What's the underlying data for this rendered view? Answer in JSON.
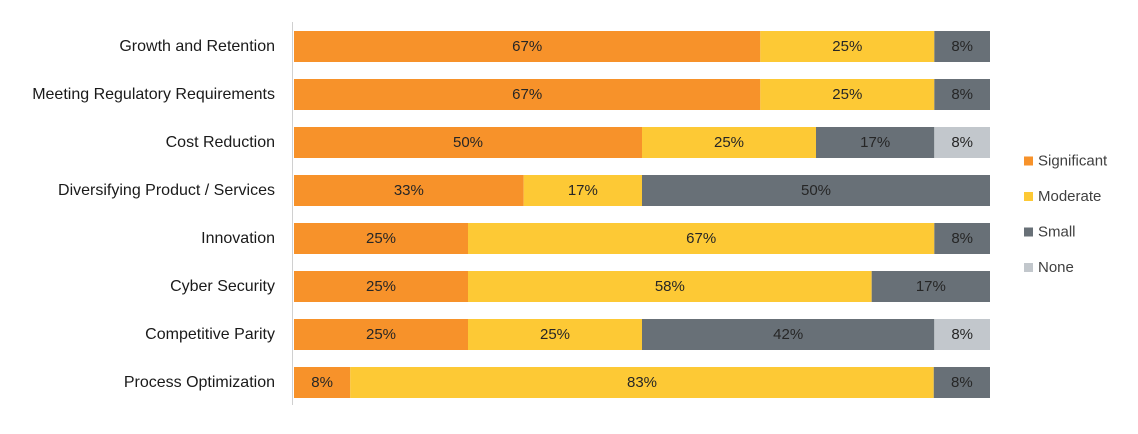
{
  "chart_data": {
    "type": "bar",
    "orientation": "horizontal",
    "stacked": true,
    "percent_stacked": true,
    "title": "",
    "xlabel": "",
    "ylabel": "",
    "xlim": [
      0,
      100
    ],
    "grid": false,
    "legend_position": "right",
    "categories": [
      "Growth and Retention",
      "Meeting Regulatory Requirements",
      "Cost Reduction",
      "Diversifying Product / Services",
      "Innovation",
      "Cyber Security",
      "Competitive Parity",
      "Process Optimization"
    ],
    "series": [
      {
        "name": "Significant",
        "color": "#f7922a",
        "label_color": "#262626",
        "values": [
          67,
          67,
          50,
          33,
          25,
          25,
          25,
          8
        ],
        "labels": [
          "67%",
          "67%",
          "50%",
          "33%",
          "25%",
          "25%",
          "25%",
          "8%"
        ]
      },
      {
        "name": "Moderate",
        "color": "#fdc935",
        "label_color": "#262626",
        "values": [
          25,
          25,
          25,
          17,
          67,
          58,
          25,
          83
        ],
        "labels": [
          "25%",
          "25%",
          "25%",
          "17%",
          "67%",
          "58%",
          "25%",
          "83%"
        ]
      },
      {
        "name": "Small",
        "color": "#687077",
        "label_color": "#ffffff",
        "values": [
          8,
          8,
          17,
          50,
          8,
          17,
          42,
          8
        ],
        "labels": [
          "8%",
          "8%",
          "17%",
          "50%",
          "8%",
          "17%",
          "42%",
          "8%"
        ]
      },
      {
        "name": "None",
        "color": "#c2c7cc",
        "label_color": "#262626",
        "values": [
          0,
          0,
          8,
          0,
          0,
          0,
          8,
          0
        ],
        "labels": [
          "",
          "",
          "8%",
          "",
          "",
          "",
          "8%",
          ""
        ]
      }
    ]
  }
}
